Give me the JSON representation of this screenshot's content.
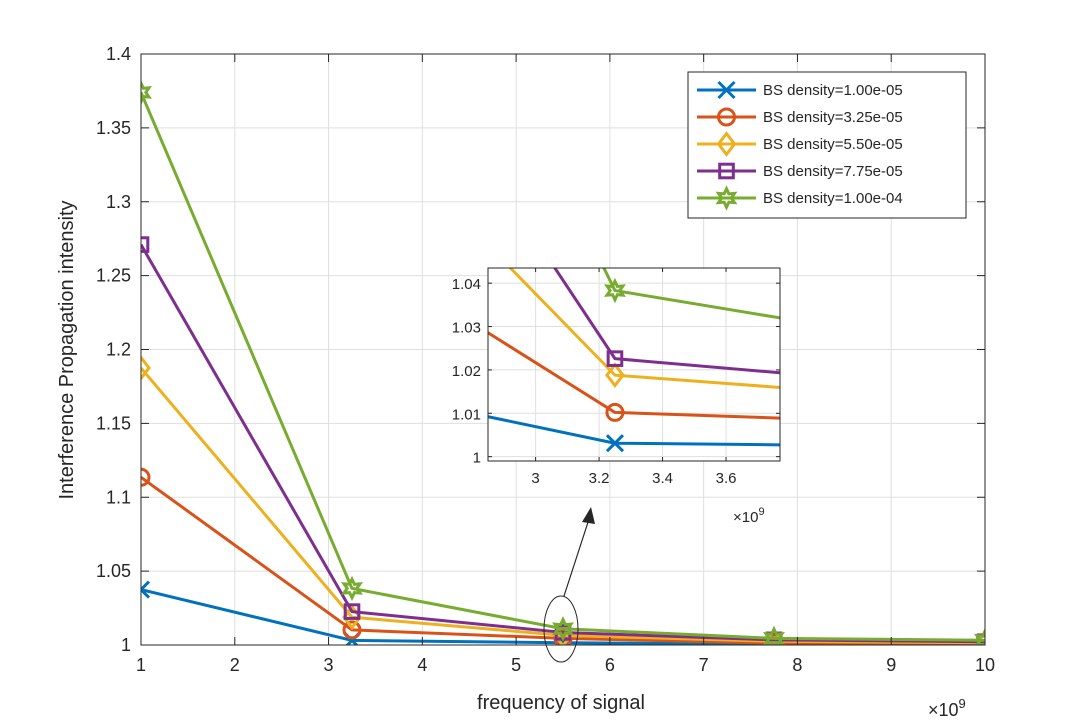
{
  "chart_data": {
    "type": "line",
    "xlabel": "frequency of signal",
    "ylabel": "Interference Propagation intensity",
    "x_exponent": "×10",
    "x_exponent_power": "9",
    "xlim": [
      1,
      10
    ],
    "ylim": [
      1,
      1.4
    ],
    "xticks": [
      1,
      2,
      3,
      4,
      5,
      6,
      7,
      8,
      9,
      10
    ],
    "yticks": [
      1,
      1.05,
      1.1,
      1.15,
      1.2,
      1.25,
      1.3,
      1.35,
      1.4
    ],
    "xtick_labels": [
      "1",
      "2",
      "3",
      "4",
      "5",
      "6",
      "7",
      "8",
      "9",
      "10"
    ],
    "ytick_labels": [
      "1",
      "1.05",
      "1.1",
      "1.15",
      "1.2",
      "1.25",
      "1.3",
      "1.35",
      "1.4"
    ],
    "grid": true,
    "legend_position": "top-right",
    "x": [
      1.0,
      3.25,
      5.5,
      7.75,
      10.0
    ],
    "series": [
      {
        "name": "BS density=1.00e-05",
        "color": "#0072bd",
        "marker": "x",
        "values": [
          1.0375,
          1.0031,
          1.0015,
          1.0006,
          1.0002
        ]
      },
      {
        "name": "BS density=3.25e-05",
        "color": "#d95319",
        "marker": "o",
        "values": [
          1.1135,
          1.0102,
          1.0045,
          1.0013,
          1.0008
        ]
      },
      {
        "name": "BS density=5.50e-05",
        "color": "#edb120",
        "marker": "diamond",
        "values": [
          1.1875,
          1.0188,
          1.0065,
          1.0025,
          1.0015
        ]
      },
      {
        "name": "BS density=7.75e-05",
        "color": "#7e2f8e",
        "marker": "square",
        "values": [
          1.271,
          1.0226,
          1.0085,
          1.0035,
          1.0022
        ]
      },
      {
        "name": "BS density=1.00e-04",
        "color": "#77ac30",
        "marker": "hexagram",
        "values": [
          1.374,
          1.0383,
          1.011,
          1.0045,
          1.0032
        ]
      }
    ],
    "inset": {
      "xlim": [
        2.85,
        3.77
      ],
      "ylim": [
        0.999,
        1.0435
      ],
      "xticks": [
        3,
        3.2,
        3.4,
        3.6
      ],
      "yticks": [
        1,
        1.01,
        1.02,
        1.03,
        1.04
      ],
      "xtick_labels": [
        "3",
        "3.2",
        "3.4",
        "3.6"
      ],
      "ytick_labels": [
        "1",
        "1.01",
        "1.02",
        "1.03",
        "1.04"
      ],
      "x_exponent": "×10",
      "x_exponent_power": "9"
    }
  }
}
